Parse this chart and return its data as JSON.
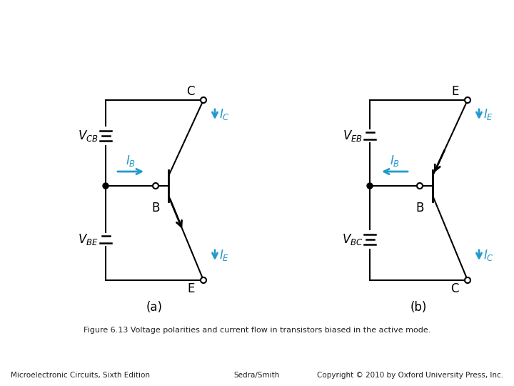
{
  "title": "Figure 6.13 Voltage polarities and current flow in transistors biased in the active mode.",
  "footer_left": "Microelectronic Circuits, Sixth Edition",
  "footer_center": "Sedra/Smith",
  "footer_right": "Copyright © 2010 by Oxford University Press, Inc.",
  "bg_color": "#ffffff",
  "line_color": "#000000",
  "blue_color": "#2299cc"
}
